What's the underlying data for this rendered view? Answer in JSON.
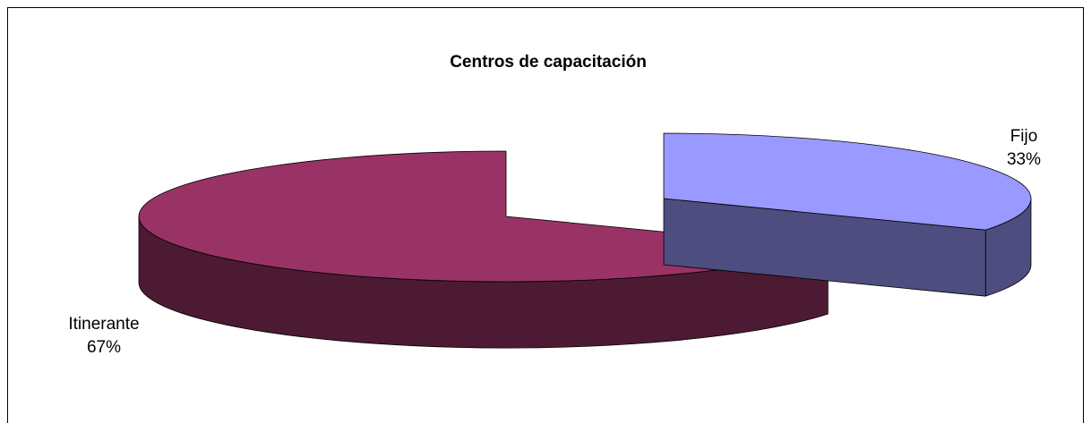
{
  "chart_data": {
    "type": "pie3d",
    "title": "Centros de capacitación",
    "categories": [
      "Fijo",
      "Itinerante"
    ],
    "values": [
      33,
      67
    ],
    "value_labels": [
      "33%",
      "67%"
    ],
    "colors": [
      "#9999ff",
      "#993366"
    ]
  }
}
